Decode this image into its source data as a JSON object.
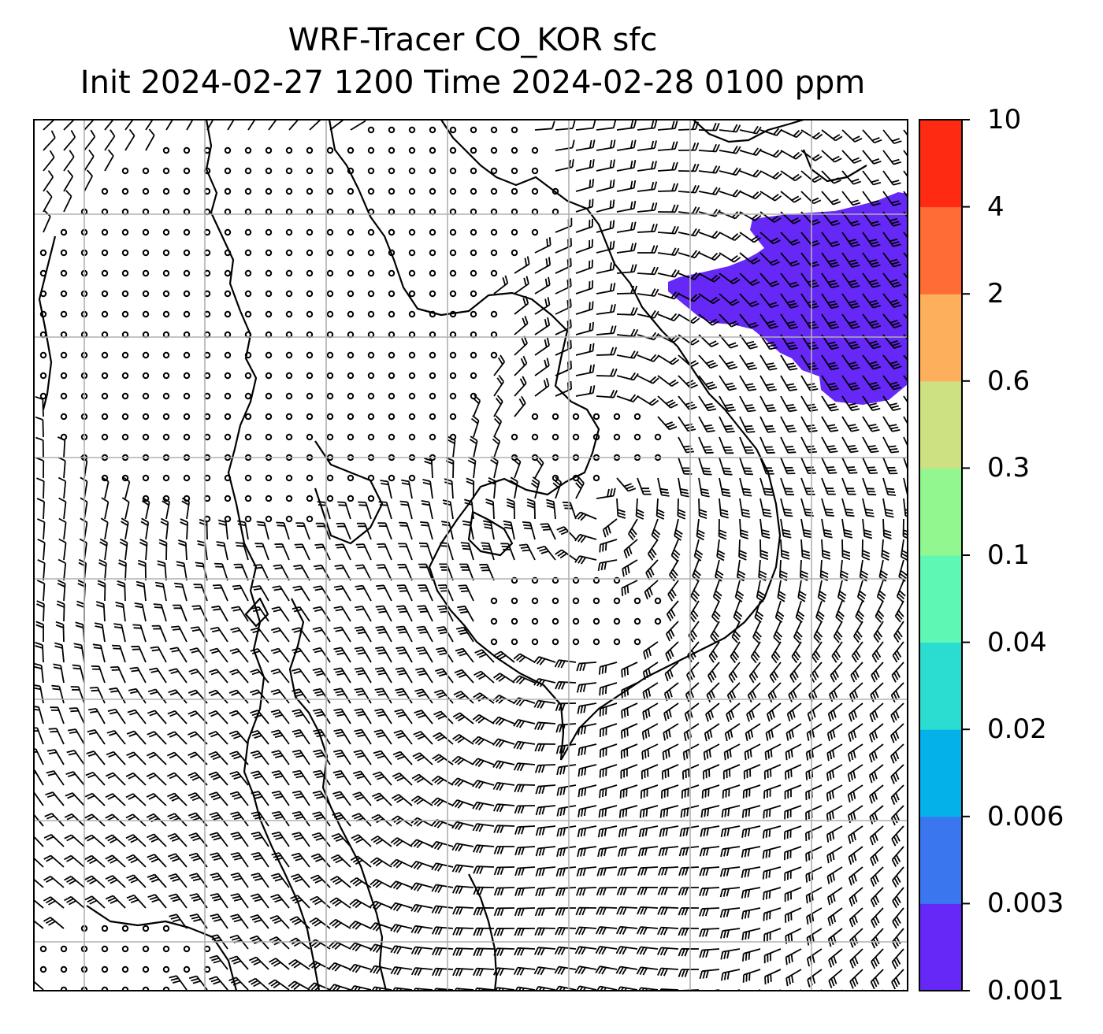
{
  "title": {
    "line1": "WRF-Tracer CO_KOR sfc",
    "line2": "Init 2024-02-27 1200 Time 2024-02-28 0100 ppm"
  },
  "field": {
    "variable": "CO_KOR",
    "level": "sfc",
    "units": "ppm",
    "overlay": "wind barbs",
    "plume_value_range": "0.001–0.003"
  },
  "colorbar": {
    "ticks": [
      "0.001",
      "0.003",
      "0.006",
      "0.02",
      "0.04",
      "0.1",
      "0.3",
      "0.6",
      "2",
      "4",
      "10"
    ],
    "colors": [
      "#6528f7",
      "#3a77ef",
      "#04b1e8",
      "#2bdcd0",
      "#5ef8b4",
      "#93f78f",
      "#cde082",
      "#fdaf5c",
      "#ff6c35",
      "#ff2a12"
    ]
  },
  "map": {
    "gridlines": true,
    "coastlines": true,
    "plume_color": "#6528f7"
  }
}
